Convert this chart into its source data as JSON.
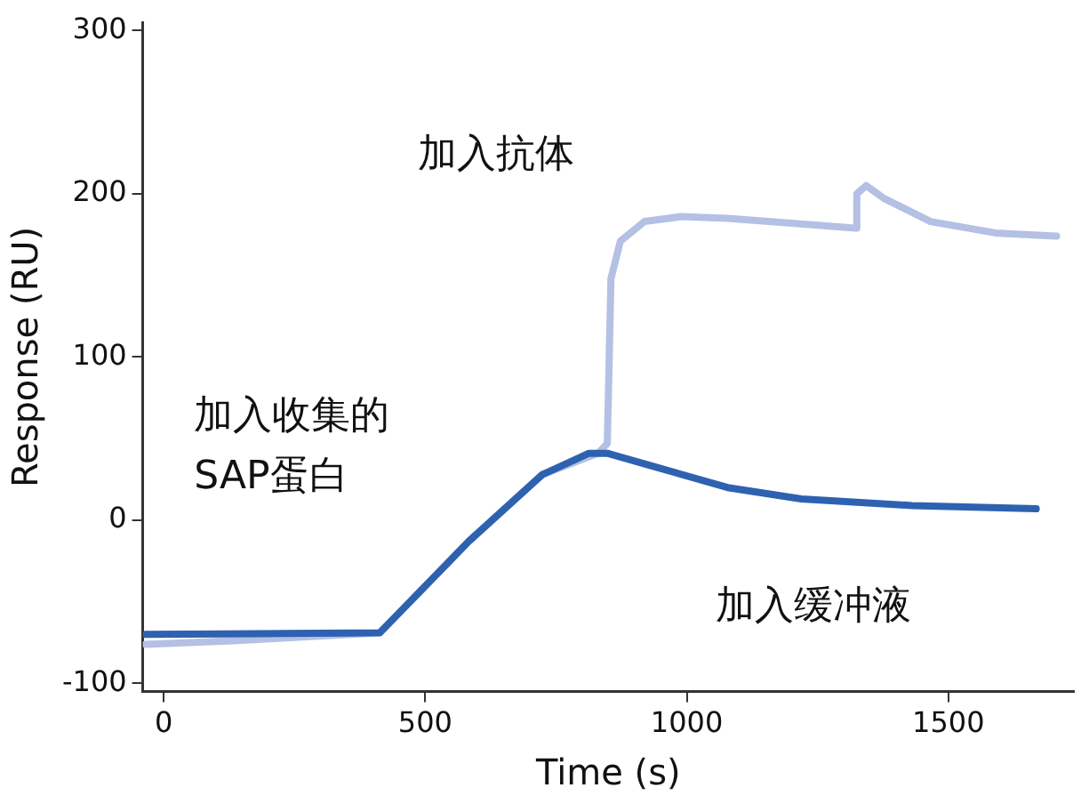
{
  "chart_data": {
    "type": "line",
    "xlabel": "Time (s)",
    "ylabel": "Response (RU)",
    "xlim": [
      -40,
      1740
    ],
    "ylim": [
      -105,
      305
    ],
    "xticks": [
      0,
      500,
      1000,
      1500
    ],
    "yticks": [
      -100,
      0,
      100,
      200,
      300
    ],
    "series": [
      {
        "color": "#b4c0e4",
        "x": [
          -35,
          124,
          413,
          583,
          724,
          830,
          848,
          855,
          873,
          919,
          989,
          1078,
          1322,
          1325,
          1343,
          1378,
          1466,
          1590,
          1707
        ],
        "values": [
          -76,
          -74,
          -69,
          -13,
          28,
          41,
          47,
          148,
          171,
          183,
          186,
          185,
          179,
          200,
          205,
          197,
          183,
          176,
          174
        ]
      },
      {
        "color": "#2e62b0",
        "x": [
          -35,
          413,
          583,
          724,
          813,
          848,
          936,
          1078,
          1219,
          1431,
          1668
        ],
        "values": [
          -70,
          -69,
          -13,
          28,
          41,
          41,
          33,
          20,
          13,
          9,
          7
        ]
      }
    ],
    "annotations": [
      "加入抗体",
      "加入收集的\nSAP蛋白",
      "加入缓冲液"
    ]
  }
}
